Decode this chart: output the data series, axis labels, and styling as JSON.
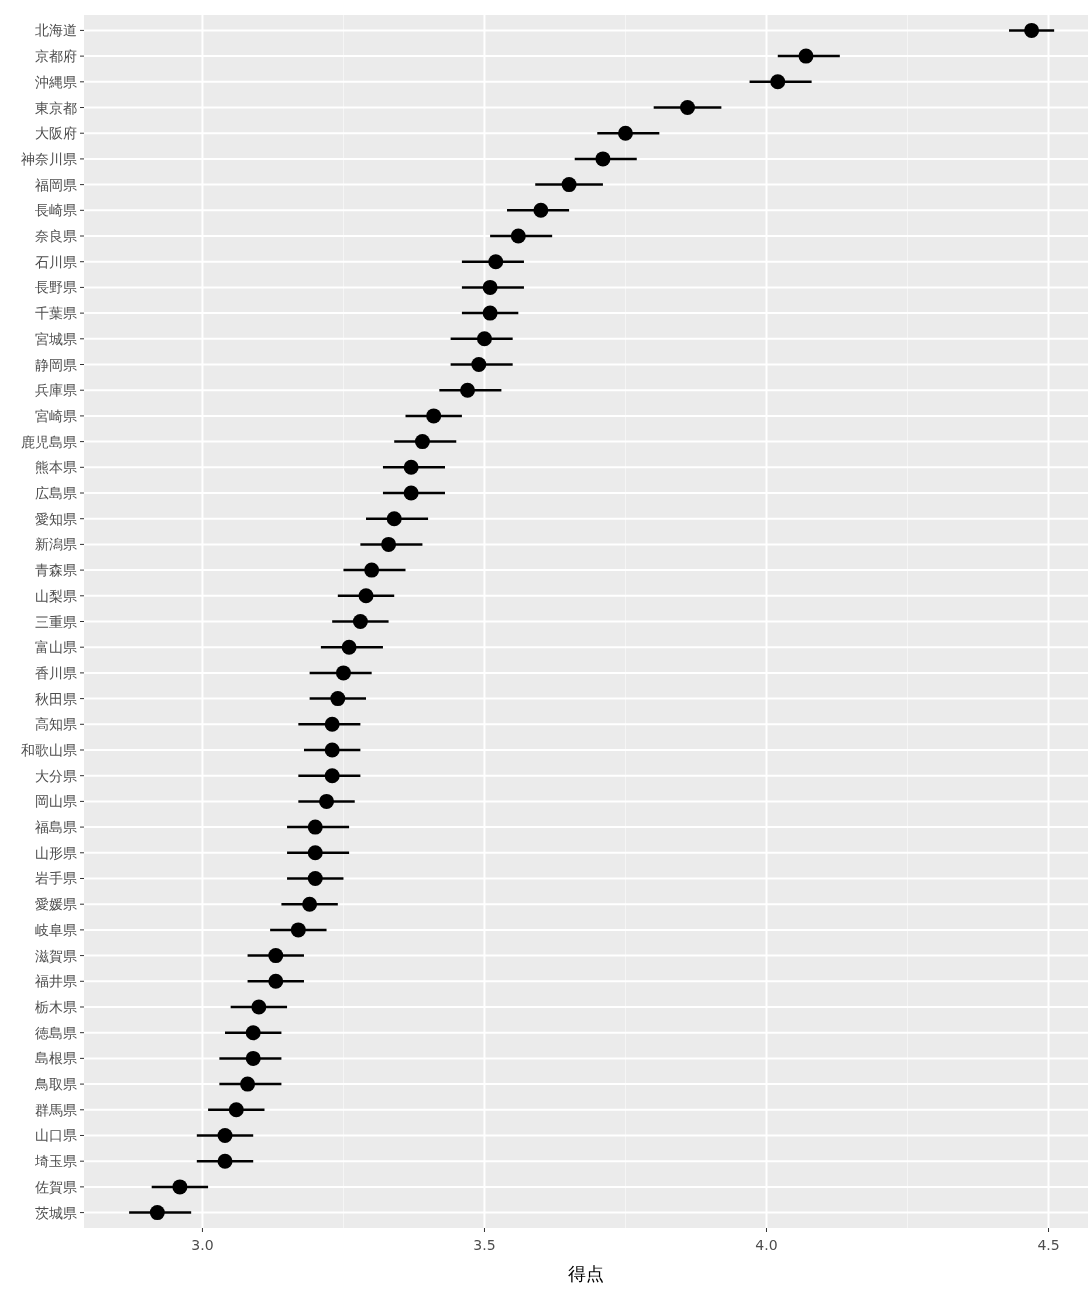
{
  "chart_data": {
    "type": "scatter",
    "orientation": "horizontal",
    "xlabel": "得点",
    "categories": [
      "北海道",
      "京都府",
      "沖縄県",
      "東京都",
      "大阪府",
      "神奈川県",
      "福岡県",
      "長崎県",
      "奈良県",
      "石川県",
      "長野県",
      "千葉県",
      "宮城県",
      "静岡県",
      "兵庫県",
      "宮崎県",
      "鹿児島県",
      "熊本県",
      "広島県",
      "愛知県",
      "新潟県",
      "青森県",
      "山梨県",
      "三重県",
      "富山県",
      "香川県",
      "秋田県",
      "高知県",
      "和歌山県",
      "大分県",
      "岡山県",
      "福島県",
      "山形県",
      "岩手県",
      "愛媛県",
      "岐阜県",
      "滋賀県",
      "福井県",
      "栃木県",
      "徳島県",
      "島根県",
      "鳥取県",
      "群馬県",
      "山口県",
      "埼玉県",
      "佐賀県",
      "茨城県"
    ],
    "values": [
      4.47,
      4.07,
      4.02,
      3.86,
      3.75,
      3.71,
      3.65,
      3.6,
      3.56,
      3.52,
      3.51,
      3.51,
      3.5,
      3.49,
      3.47,
      3.41,
      3.39,
      3.37,
      3.37,
      3.34,
      3.33,
      3.3,
      3.29,
      3.28,
      3.26,
      3.25,
      3.24,
      3.23,
      3.23,
      3.23,
      3.22,
      3.2,
      3.2,
      3.2,
      3.19,
      3.17,
      3.13,
      3.13,
      3.1,
      3.09,
      3.09,
      3.08,
      3.06,
      3.04,
      3.04,
      2.96,
      2.92
    ],
    "errors": [
      [
        4.43,
        4.51
      ],
      [
        4.02,
        4.13
      ],
      [
        3.97,
        4.08
      ],
      [
        3.8,
        3.92
      ],
      [
        3.7,
        3.81
      ],
      [
        3.66,
        3.77
      ],
      [
        3.59,
        3.71
      ],
      [
        3.54,
        3.65
      ],
      [
        3.51,
        3.62
      ],
      [
        3.46,
        3.57
      ],
      [
        3.46,
        3.57
      ],
      [
        3.46,
        3.56
      ],
      [
        3.44,
        3.55
      ],
      [
        3.44,
        3.55
      ],
      [
        3.42,
        3.53
      ],
      [
        3.36,
        3.46
      ],
      [
        3.34,
        3.45
      ],
      [
        3.32,
        3.43
      ],
      [
        3.32,
        3.43
      ],
      [
        3.29,
        3.4
      ],
      [
        3.28,
        3.39
      ],
      [
        3.25,
        3.36
      ],
      [
        3.24,
        3.34
      ],
      [
        3.23,
        3.33
      ],
      [
        3.21,
        3.32
      ],
      [
        3.19,
        3.3
      ],
      [
        3.19,
        3.29
      ],
      [
        3.17,
        3.28
      ],
      [
        3.18,
        3.28
      ],
      [
        3.17,
        3.28
      ],
      [
        3.17,
        3.27
      ],
      [
        3.15,
        3.26
      ],
      [
        3.15,
        3.26
      ],
      [
        3.15,
        3.25
      ],
      [
        3.14,
        3.24
      ],
      [
        3.12,
        3.22
      ],
      [
        3.08,
        3.18
      ],
      [
        3.08,
        3.18
      ],
      [
        3.05,
        3.15
      ],
      [
        3.04,
        3.14
      ],
      [
        3.03,
        3.14
      ],
      [
        3.03,
        3.14
      ],
      [
        3.01,
        3.11
      ],
      [
        2.99,
        3.09
      ],
      [
        2.99,
        3.09
      ],
      [
        2.91,
        3.01
      ],
      [
        2.87,
        2.98
      ]
    ],
    "color": "#000000",
    "marker": "circle",
    "xlim": [
      2.79,
      4.57
    ],
    "xticks": [
      {
        "value": 3,
        "label": "3.0"
      },
      {
        "value": 3.5,
        "label": "3.5"
      },
      {
        "value": 4,
        "label": "4.0"
      },
      {
        "value": 4.5,
        "label": "4.5"
      }
    ],
    "grid": true
  }
}
